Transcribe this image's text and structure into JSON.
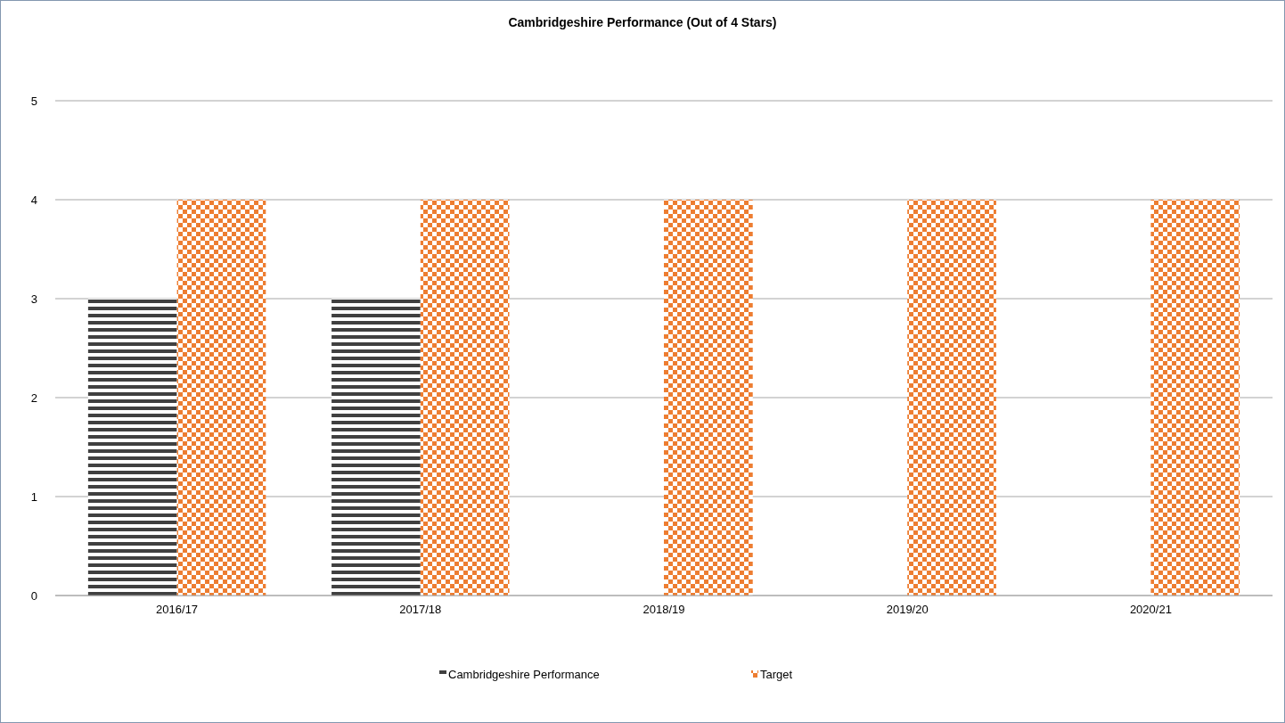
{
  "chart_data": {
    "type": "bar",
    "title": "Cambridgeshire Performance (Out of 4 Stars)",
    "categories": [
      "2016/17",
      "2017/18",
      "2018/19",
      "2019/20",
      "2020/21"
    ],
    "series": [
      {
        "name": "Cambridgeshire Performance",
        "color": "#404040",
        "values": [
          3,
          3,
          null,
          null,
          null
        ]
      },
      {
        "name": "Target",
        "color": "#ed7d31",
        "values": [
          4,
          4,
          4,
          4,
          4
        ]
      }
    ],
    "ylim": [
      0,
      5
    ],
    "yticks": [
      0,
      1,
      2,
      3,
      4,
      5
    ],
    "grid": "y",
    "legend": "bottom"
  }
}
